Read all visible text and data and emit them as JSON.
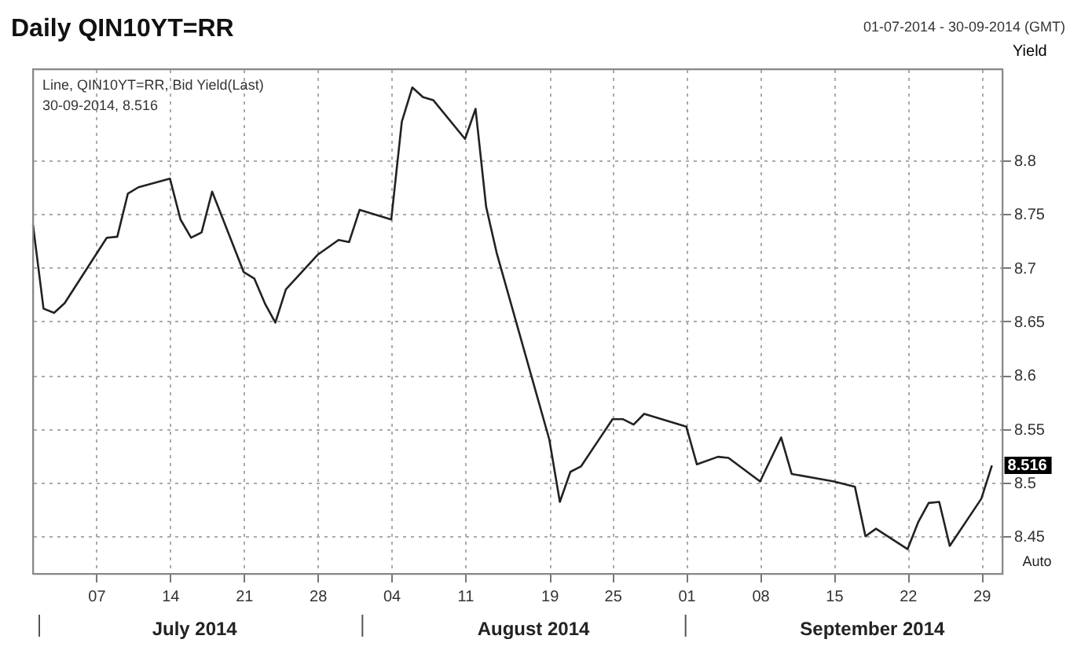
{
  "chart_data": {
    "type": "line",
    "title": "Daily QIN10YT=RR",
    "subtitle": "01-07-2014 - 30-09-2014 (GMT)",
    "ylabel": "Yield",
    "x": [
      "2014-07-01",
      "2014-07-02",
      "2014-07-03",
      "2014-07-04",
      "2014-07-08",
      "2014-07-09",
      "2014-07-10",
      "2014-07-11",
      "2014-07-14",
      "2014-07-15",
      "2014-07-16",
      "2014-07-17",
      "2014-07-18",
      "2014-07-21",
      "2014-07-22",
      "2014-07-23",
      "2014-07-24",
      "2014-07-25",
      "2014-07-28",
      "2014-07-30",
      "2014-07-31",
      "2014-08-01",
      "2014-08-04",
      "2014-08-05",
      "2014-08-06",
      "2014-08-07",
      "2014-08-08",
      "2014-08-11",
      "2014-08-12",
      "2014-08-13",
      "2014-08-14",
      "2014-08-19",
      "2014-08-20",
      "2014-08-21",
      "2014-08-22",
      "2014-08-25",
      "2014-08-26",
      "2014-08-27",
      "2014-08-28",
      "2014-09-01",
      "2014-09-02",
      "2014-09-04",
      "2014-09-05",
      "2014-09-08",
      "2014-09-10",
      "2014-09-11",
      "2014-09-15",
      "2014-09-17",
      "2014-09-18",
      "2014-09-19",
      "2014-09-22",
      "2014-09-23",
      "2014-09-24",
      "2014-09-25",
      "2014-09-26",
      "2014-09-29",
      "2014-09-30"
    ],
    "series": [
      {
        "color": "#222222",
        "values": [
          8.74,
          8.662,
          8.658,
          8.667,
          8.728,
          8.729,
          8.769,
          8.775,
          8.783,
          8.745,
          8.728,
          8.733,
          8.771,
          8.696,
          8.69,
          8.667,
          8.649,
          8.68,
          8.712,
          8.726,
          8.724,
          8.754,
          8.745,
          8.836,
          8.868,
          8.859,
          8.856,
          8.82,
          8.848,
          8.757,
          8.714,
          8.54,
          8.482,
          8.51,
          8.515,
          8.559,
          8.559,
          8.554,
          8.564,
          8.552,
          8.517,
          8.524,
          8.523,
          8.501,
          8.542,
          8.508,
          8.501,
          8.496,
          8.45,
          8.457,
          8.438,
          8.463,
          8.481,
          8.482,
          8.441,
          8.485,
          8.516
        ]
      }
    ],
    "xlim": [
      "2014-07-01",
      "2014-10-01"
    ],
    "xticks": [
      {
        "value": "2014-07-07",
        "label": "07"
      },
      {
        "value": "2014-07-14",
        "label": "14"
      },
      {
        "value": "2014-07-21",
        "label": "21"
      },
      {
        "value": "2014-07-28",
        "label": "28"
      },
      {
        "value": "2014-08-04",
        "label": "04"
      },
      {
        "value": "2014-08-11",
        "label": "11"
      },
      {
        "value": "2014-08-19",
        "label": "19"
      },
      {
        "value": "2014-08-25",
        "label": "25"
      },
      {
        "value": "2014-09-01",
        "label": "01"
      },
      {
        "value": "2014-09-08",
        "label": "08"
      },
      {
        "value": "2014-09-15",
        "label": "15"
      },
      {
        "value": "2014-09-22",
        "label": "22"
      },
      {
        "value": "2014-09-29",
        "label": "29"
      }
    ],
    "ylim": [
      8.415,
      8.885
    ],
    "yticks": [
      8.45,
      8.5,
      8.55,
      8.6,
      8.65,
      8.7,
      8.75,
      8.8
    ],
    "grid": true,
    "line_style": "solid",
    "marker": "none",
    "annotations": [
      "Line, QIN10YT=RR, Bid Yield(Last)",
      "30-09-2014, 8.516",
      {
        "text": "8.516",
        "x": "2014-09-30",
        "y": 8.516
      },
      "July 2014",
      "August 2014",
      "September 2014",
      "Auto"
    ]
  }
}
